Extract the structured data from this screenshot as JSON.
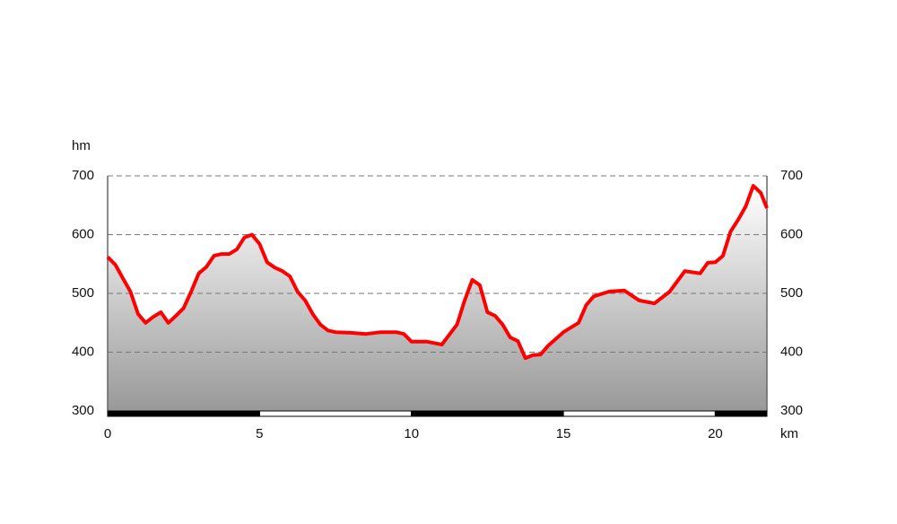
{
  "chart_data": {
    "type": "area",
    "y_label": "hm",
    "x_label": "km",
    "x": [
      0,
      0.25,
      0.5,
      0.75,
      1,
      1.25,
      1.5,
      1.75,
      2,
      2.25,
      2.5,
      2.75,
      3,
      3.25,
      3.5,
      3.75,
      4,
      4.25,
      4.5,
      4.75,
      5,
      5.25,
      5.5,
      5.75,
      6,
      6.25,
      6.5,
      6.75,
      7,
      7.25,
      7.5,
      8,
      8.5,
      9,
      9.5,
      9.75,
      10,
      10.5,
      11,
      11.5,
      11.75,
      12,
      12.25,
      12.5,
      12.75,
      13,
      13.25,
      13.5,
      13.75,
      14,
      14.25,
      14.5,
      15,
      15.5,
      15.75,
      16,
      16.5,
      17,
      17.5,
      18,
      18.5,
      19,
      19.5,
      19.75,
      20,
      20.25,
      20.5,
      20.75,
      21,
      21.25,
      21.5,
      21.7
    ],
    "values": [
      562,
      549,
      526,
      503,
      465,
      450,
      460,
      468,
      450,
      462,
      475,
      503,
      534,
      545,
      564,
      567,
      567,
      575,
      595,
      600,
      584,
      553,
      544,
      538,
      529,
      503,
      488,
      465,
      447,
      437,
      434,
      433,
      431,
      434,
      434,
      431,
      418,
      418,
      413,
      447,
      488,
      523,
      514,
      468,
      462,
      447,
      425,
      419,
      390,
      395,
      396,
      411,
      434,
      450,
      480,
      495,
      503,
      505,
      488,
      483,
      503,
      538,
      534,
      552,
      553,
      564,
      605,
      625,
      648,
      683,
      671,
      645
    ],
    "color": "#ff0000",
    "xlim": [
      0,
      21.7
    ],
    "xticks": [
      0,
      5,
      10,
      15,
      20
    ],
    "ylim": [
      300,
      700
    ],
    "yticks": [
      300,
      400,
      500,
      600,
      700
    ],
    "grid": true
  }
}
